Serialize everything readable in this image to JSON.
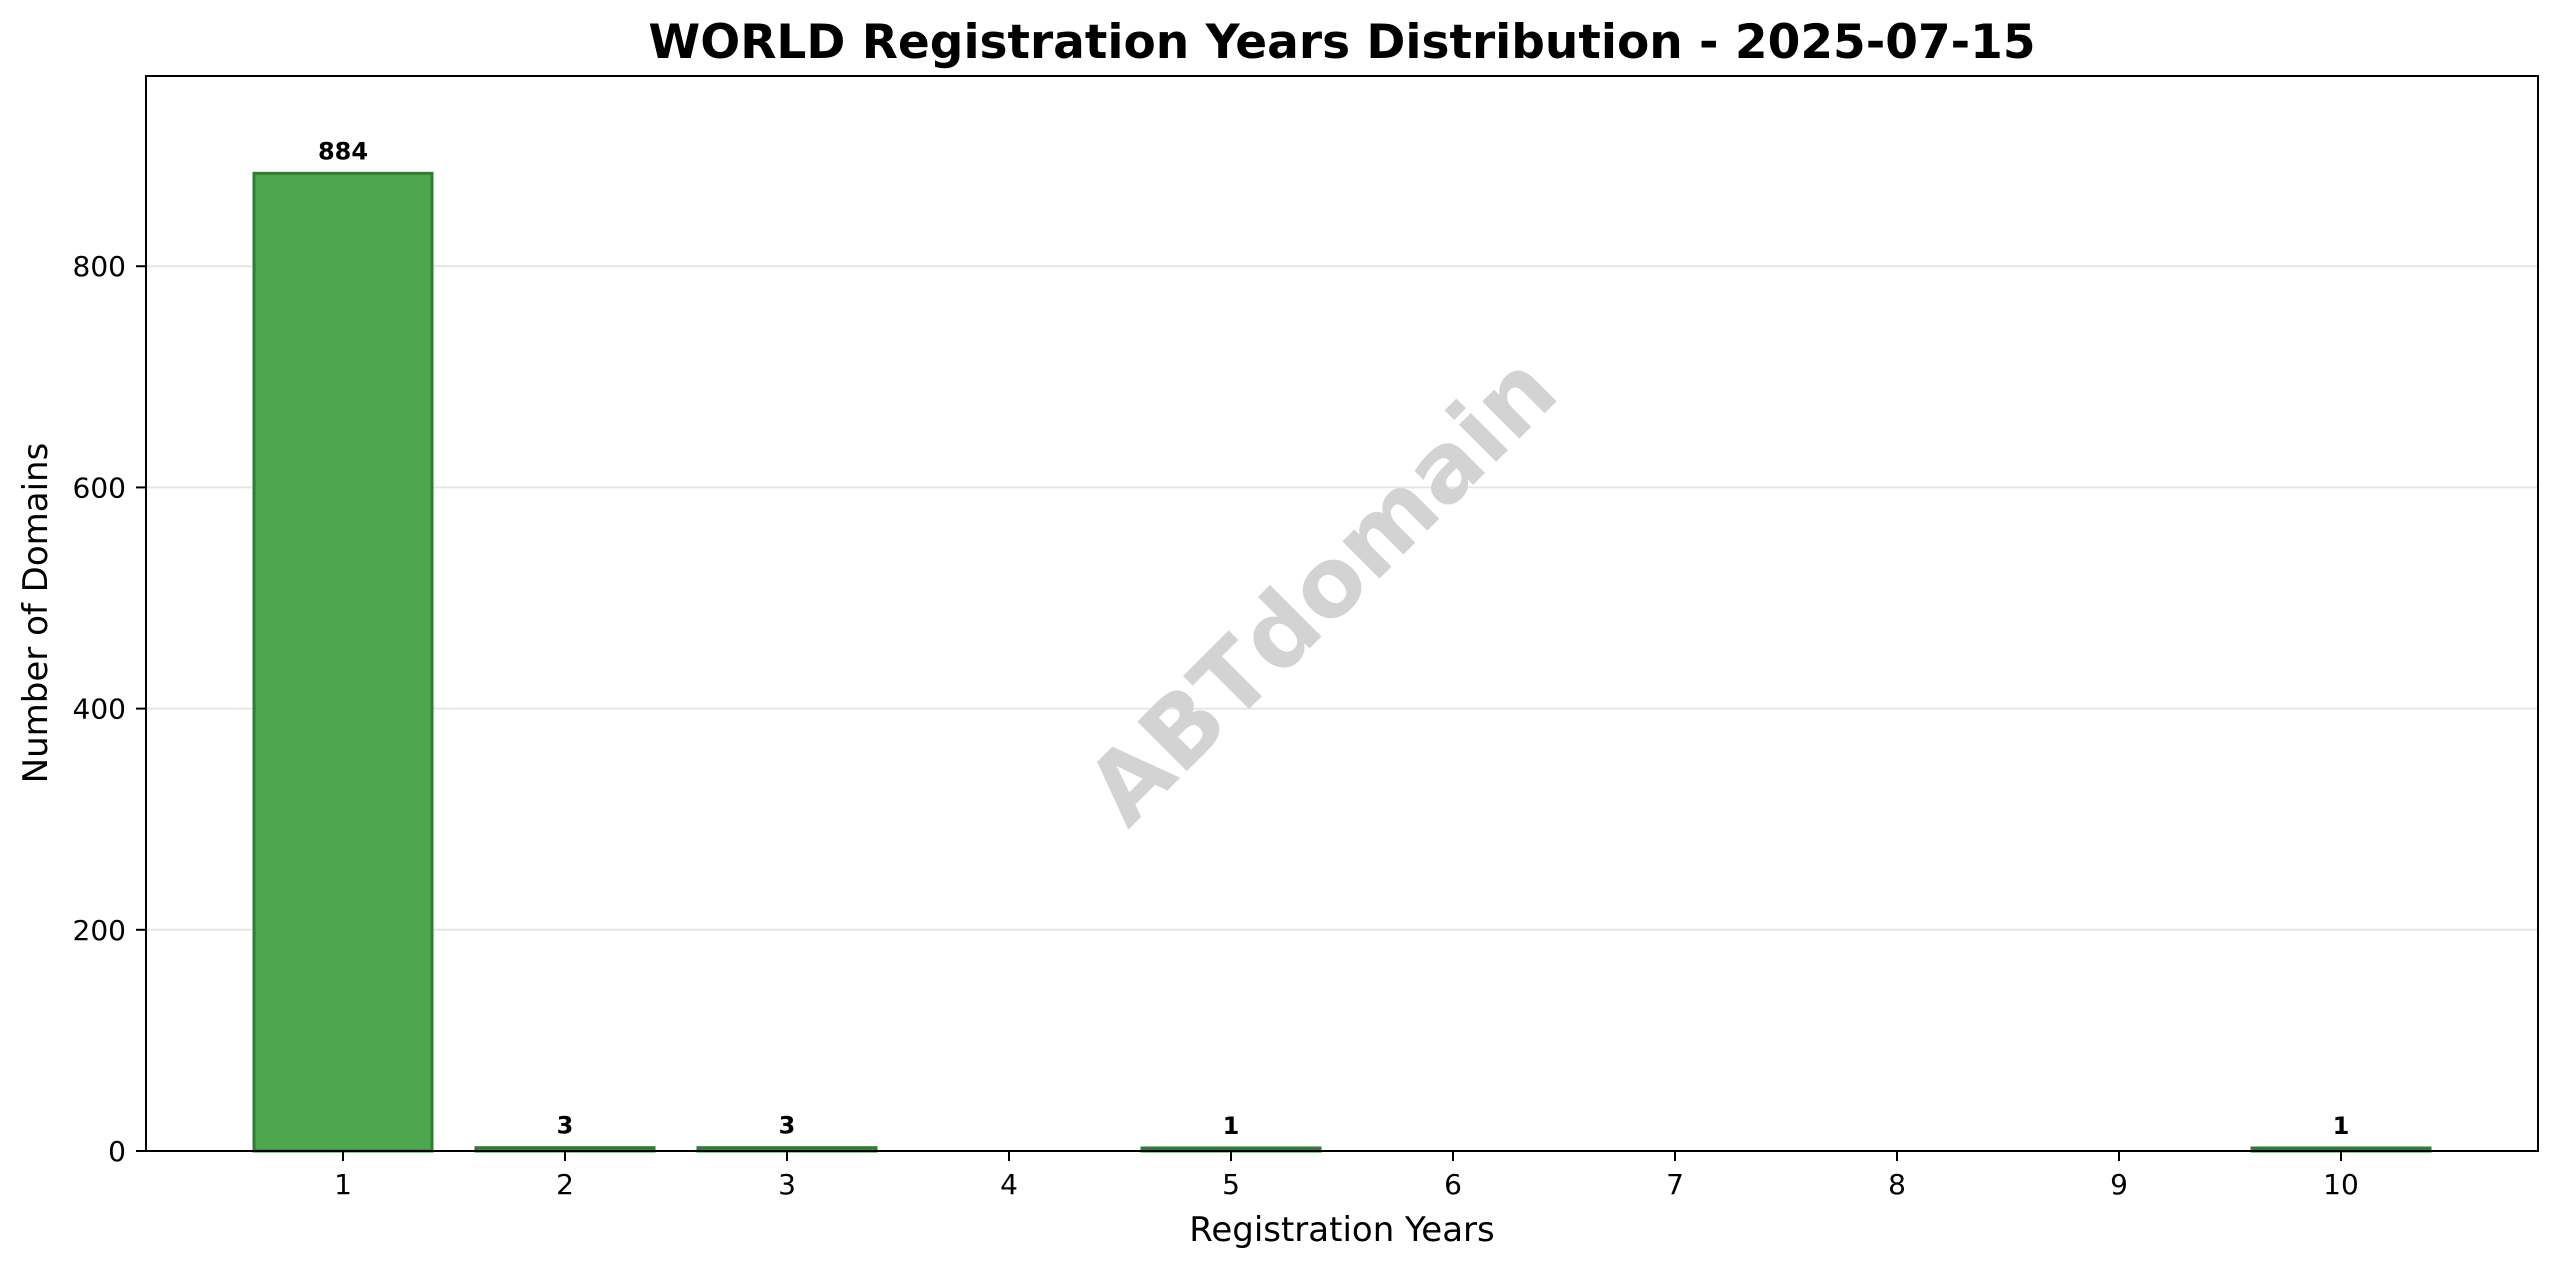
{
  "chart_data": {
    "type": "bar",
    "title": "WORLD Registration Years Distribution - 2025-07-15",
    "xlabel": "Registration Years",
    "ylabel": "Number of Domains",
    "categories": [
      "1",
      "2",
      "3",
      "4",
      "5",
      "6",
      "7",
      "8",
      "9",
      "10"
    ],
    "values": [
      884,
      3,
      3,
      0,
      1,
      0,
      0,
      0,
      0,
      1
    ],
    "data_labels": [
      "884",
      "3",
      "3",
      "",
      "1",
      "",
      "",
      "",
      "",
      "1"
    ],
    "yticks": [
      0,
      200,
      400,
      600,
      800
    ],
    "ytick_labels": [
      "0",
      "200",
      "400",
      "600",
      "800"
    ],
    "ylim": [
      0,
      972
    ],
    "grid": "horizontal",
    "bar_color": "#4ea64e",
    "bar_edge_color": "#2e7d32",
    "watermark": "ABTdomain"
  }
}
